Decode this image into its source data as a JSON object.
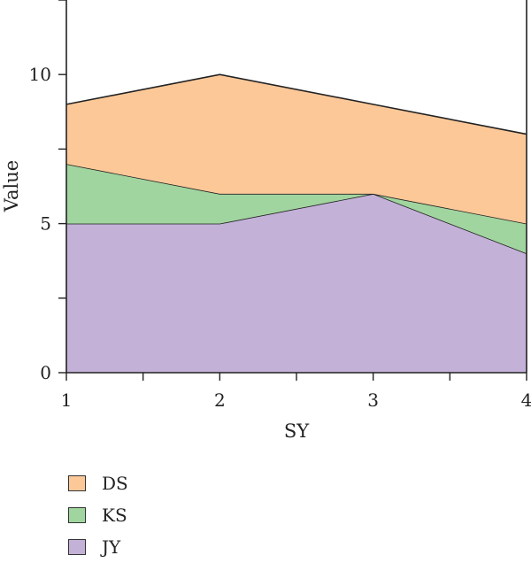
{
  "chart_data": {
    "type": "area",
    "stacked": true,
    "title": "",
    "xlabel": "SY",
    "ylabel": "Value",
    "x": [
      1,
      2,
      3,
      4
    ],
    "xticks": [
      "1",
      "2",
      "3",
      "4"
    ],
    "yticks": [
      "0",
      "5",
      "10"
    ],
    "xlim": [
      1,
      4
    ],
    "ylim": [
      0,
      12.5
    ],
    "grid": false,
    "legend_position": "bottom-left",
    "series": [
      {
        "name": "JY",
        "values": [
          5,
          5,
          6,
          4
        ],
        "color": "#c3b1d8"
      },
      {
        "name": "KS",
        "values": [
          2,
          1,
          0,
          1
        ],
        "color": "#a1d59f"
      },
      {
        "name": "DS",
        "values": [
          2,
          4,
          3,
          3
        ],
        "color": "#fdc898"
      }
    ],
    "legend_order": [
      "DS",
      "KS",
      "JY"
    ]
  }
}
